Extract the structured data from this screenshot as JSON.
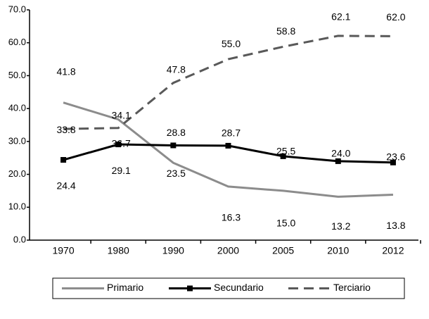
{
  "chart_data": {
    "type": "line",
    "categories": [
      "1970",
      "1980",
      "1990",
      "2000",
      "2005",
      "2010",
      "2012"
    ],
    "series": [
      {
        "name": "Primario",
        "color": "#8c8c8c",
        "style": "solid",
        "marker": false,
        "values": [
          41.8,
          36.7,
          23.5,
          16.3,
          15.0,
          13.2,
          13.8
        ],
        "value_labels": [
          "41.8",
          "36.7",
          "23.5",
          "16.3",
          "15.0",
          "13.2",
          "13.8"
        ]
      },
      {
        "name": "Secundario",
        "color": "#000000",
        "style": "solid",
        "marker": true,
        "values": [
          24.4,
          29.1,
          28.8,
          28.7,
          25.5,
          24.0,
          23.6
        ],
        "value_labels": [
          "24.4",
          "29.1",
          "28.8",
          "28.7",
          "25.5",
          "24.0",
          "23.6"
        ]
      },
      {
        "name": "Terciario",
        "color": "#595959",
        "style": "dashed",
        "marker": false,
        "values": [
          33.8,
          34.1,
          47.8,
          55.0,
          58.8,
          62.1,
          62.0
        ],
        "value_labels": [
          "33.8",
          "34.1",
          "47.8",
          "55.0",
          "58.8",
          "62.1",
          "62.0"
        ]
      }
    ],
    "ylim": [
      0,
      70
    ],
    "yticks": [
      {
        "value": 0,
        "label": "0.0"
      },
      {
        "value": 10,
        "label": "10.0"
      },
      {
        "value": 20,
        "label": "20.0"
      },
      {
        "value": 30,
        "label": "30.0"
      },
      {
        "value": 40,
        "label": "40.0"
      },
      {
        "value": 50,
        "label": "50.0"
      },
      {
        "value": 60,
        "label": "60.0"
      },
      {
        "value": 70,
        "label": "70.0"
      }
    ],
    "legend": "bottom"
  }
}
